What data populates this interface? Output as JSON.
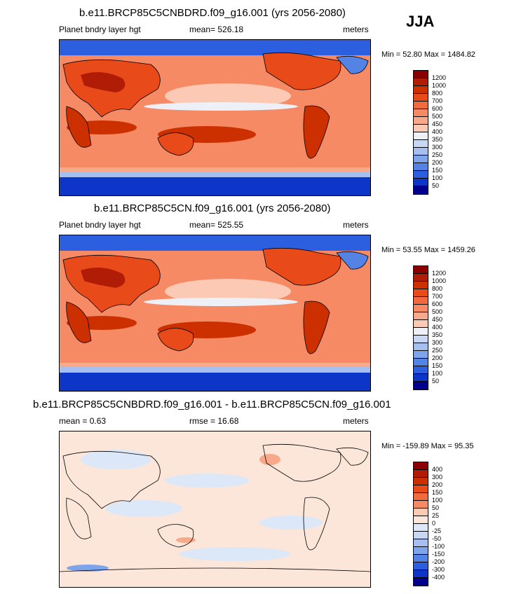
{
  "season": "JJA",
  "panels": [
    {
      "title": "b.e11.BRCP85C5CNBDRD.f09_g16.001 (yrs 2056-2080)",
      "left_label": "Planet bndry layer hgt",
      "mean_label": "mean= 526.18",
      "units": "meters",
      "minmax": "Min =  52.80 Max = 1484.82"
    },
    {
      "title": "b.e11.BRCP85C5CN.f09_g16.001 (yrs 2056-2080)",
      "left_label": "Planet bndry layer hgt",
      "mean_label": "mean= 525.55",
      "units": "meters",
      "minmax": "Min =  53.55 Max = 1459.26"
    },
    {
      "title": "b.e11.BRCP85C5CNBDRD.f09_g16.001 - b.e11.BRCP85C5CN.f09_g16.001",
      "left_label": "mean =   0.63",
      "mean_label": "rmse =  16.68",
      "units": "meters",
      "minmax": "Min = -159.89 Max =  95.35"
    }
  ],
  "colorbars": {
    "abs": {
      "labels": [
        "1200",
        "1000",
        "800",
        "700",
        "600",
        "500",
        "450",
        "400",
        "350",
        "300",
        "250",
        "200",
        "150",
        "100",
        "50"
      ],
      "colors": [
        "#8b0000",
        "#b01c06",
        "#cc3000",
        "#e84a1a",
        "#f06a3e",
        "#f58a64",
        "#f8a98a",
        "#fbc9b4",
        "#eef0f8",
        "#c8d8f4",
        "#a4bff0",
        "#7ea4ec",
        "#5483e6",
        "#2c5ee0",
        "#0d35c8",
        "#00008c"
      ]
    },
    "diff": {
      "labels": [
        "400",
        "300",
        "200",
        "150",
        "100",
        "50",
        "25",
        "0",
        "-25",
        "-50",
        "-100",
        "-150",
        "-200",
        "-300",
        "-400"
      ],
      "colors": [
        "#8b0000",
        "#b01c06",
        "#cc3000",
        "#e84a1a",
        "#f06a3e",
        "#f58a64",
        "#fbc9b4",
        "#fce6da",
        "#dce8f8",
        "#c8d8f4",
        "#a4bff0",
        "#7ea4ec",
        "#5483e6",
        "#2c5ee0",
        "#0d35c8",
        "#00008c"
      ]
    }
  },
  "chart_data": [
    {
      "type": "heatmap",
      "title": "b.e11.BRCP85C5CNBDRD.f09_g16.001 (yrs 2056-2080)",
      "variable": "Planet bndry layer hgt",
      "units": "meters",
      "mean": 526.18,
      "min": 52.8,
      "max": 1484.82,
      "contour_levels": [
        50,
        100,
        150,
        200,
        250,
        300,
        350,
        400,
        450,
        500,
        600,
        700,
        800,
        1000,
        1200
      ]
    },
    {
      "type": "heatmap",
      "title": "b.e11.BRCP85C5CN.f09_g16.001 (yrs 2056-2080)",
      "variable": "Planet bndry layer hgt",
      "units": "meters",
      "mean": 525.55,
      "min": 53.55,
      "max": 1459.26,
      "contour_levels": [
        50,
        100,
        150,
        200,
        250,
        300,
        350,
        400,
        450,
        500,
        600,
        700,
        800,
        1000,
        1200
      ]
    },
    {
      "type": "heatmap",
      "title": "b.e11.BRCP85C5CNBDRD.f09_g16.001 - b.e11.BRCP85C5CN.f09_g16.001",
      "units": "meters",
      "mean": 0.63,
      "rmse": 16.68,
      "min": -159.89,
      "max": 95.35,
      "contour_levels": [
        -400,
        -300,
        -200,
        -150,
        -100,
        -50,
        -25,
        0,
        25,
        50,
        100,
        150,
        200,
        300,
        400
      ]
    }
  ]
}
